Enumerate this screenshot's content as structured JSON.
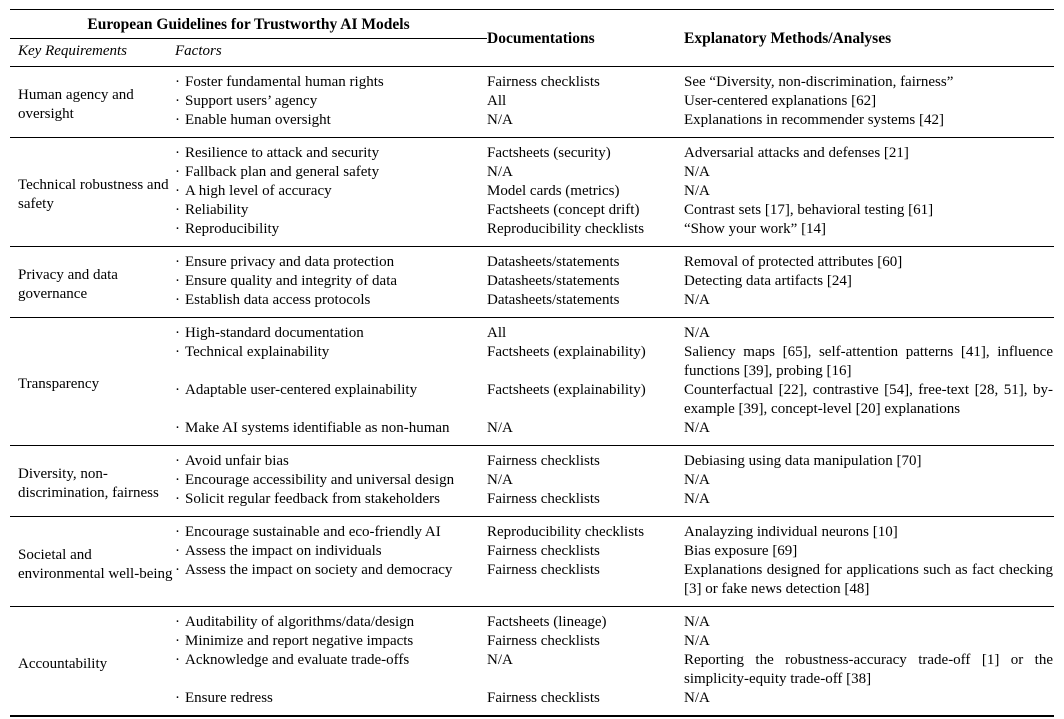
{
  "colors": {
    "background": "#ffffff",
    "text": "#000000",
    "rule": "#000000"
  },
  "table": {
    "header_group": "European Guidelines for Trustworthy AI Models",
    "subheaders": {
      "key_requirements": "Key Requirements",
      "factors": "Factors"
    },
    "col_documentations": "Documentations",
    "col_methods": "Explanatory Methods/Analyses",
    "bullet": "·",
    "groups": [
      {
        "requirement": "Human agency and oversight",
        "rows": [
          {
            "factor": "Foster fundamental human rights",
            "doc": "Fairness checklists",
            "methods": "See “Diversity, non-discrimination, fairness”"
          },
          {
            "factor": "Support users’ agency",
            "doc": "All",
            "methods": "User-centered explanations [62]"
          },
          {
            "factor": "Enable human oversight",
            "doc": "N/A",
            "methods": "Explanations in recommender systems [42]"
          }
        ]
      },
      {
        "requirement": "Technical robustness and safety",
        "rows": [
          {
            "factor": "Resilience to attack and security",
            "doc": "Factsheets (security)",
            "methods": "Adversarial attacks and defenses [21]"
          },
          {
            "factor": "Fallback plan and general safety",
            "doc": "N/A",
            "methods": "N/A"
          },
          {
            "factor": "A high level of accuracy",
            "doc": "Model cards (metrics)",
            "methods": "N/A"
          },
          {
            "factor": "Reliability",
            "doc": "Factsheets (concept drift)",
            "methods": "Contrast sets [17], behavioral testing [61]"
          },
          {
            "factor": "Reproducibility",
            "doc": "Reproducibility checklists",
            "methods": "“Show your work” [14]"
          }
        ]
      },
      {
        "requirement": "Privacy and data governance",
        "rows": [
          {
            "factor": "Ensure privacy and data protection",
            "doc": "Datasheets/statements",
            "methods": "Removal of protected attributes [60]"
          },
          {
            "factor": "Ensure quality and integrity of data",
            "doc": "Datasheets/statements",
            "methods": "Detecting data artifacts [24]"
          },
          {
            "factor": "Establish data access protocols",
            "doc": "Datasheets/statements",
            "methods": "N/A"
          }
        ]
      },
      {
        "requirement": "Transparency",
        "rows": [
          {
            "factor": "High-standard documentation",
            "doc": "All",
            "methods": "N/A"
          },
          {
            "factor": "Technical explainability",
            "doc": "Factsheets (explainability)",
            "methods": "Saliency maps [65], self-attention patterns [41], influence functions [39], probing [16]"
          },
          {
            "factor": "Adaptable user-centered explainability",
            "doc": "Factsheets (explainability)",
            "methods": "Counterfactual [22], contrastive [54], free-text [28, 51], by-example [39], concept-level [20] explanations"
          },
          {
            "factor": "Make AI systems identifiable as non-human",
            "doc": "N/A",
            "methods": "N/A"
          }
        ]
      },
      {
        "requirement": "Diversity, non-discrimination, fairness",
        "rows": [
          {
            "factor": "Avoid unfair bias",
            "doc": "Fairness checklists",
            "methods": "Debiasing using data manipulation [70]"
          },
          {
            "factor": "Encourage accessibility and universal design",
            "doc": "N/A",
            "methods": "N/A"
          },
          {
            "factor": "Solicit regular feedback from stakeholders",
            "doc": "Fairness checklists",
            "methods": "N/A"
          }
        ]
      },
      {
        "requirement": "Societal and environmental well-being",
        "rows": [
          {
            "factor": "Encourage sustainable and eco-friendly AI",
            "doc": "Reproducibility checklists",
            "methods": "Analayzing individual neurons [10]"
          },
          {
            "factor": "Assess the impact on individuals",
            "doc": "Fairness checklists",
            "methods": "Bias exposure [69]"
          },
          {
            "factor": "Assess the impact on society and democracy",
            "doc": "Fairness checklists",
            "methods": "Explanations designed for applications such as fact checking [3] or fake news detection [48]"
          }
        ]
      },
      {
        "requirement": "Accountability",
        "rows": [
          {
            "factor": "Auditability of algorithms/data/design",
            "doc": "Factsheets (lineage)",
            "methods": "N/A"
          },
          {
            "factor": "Minimize and report negative impacts",
            "doc": "Fairness checklists",
            "methods": "N/A"
          },
          {
            "factor": "Acknowledge and evaluate trade-offs",
            "doc": "N/A",
            "methods": "Reporting the robustness-accuracy trade-off [1] or the simplicity-equity trade-off [38]"
          },
          {
            "factor": "Ensure redress",
            "doc": "Fairness checklists",
            "methods": "N/A"
          }
        ]
      }
    ]
  }
}
